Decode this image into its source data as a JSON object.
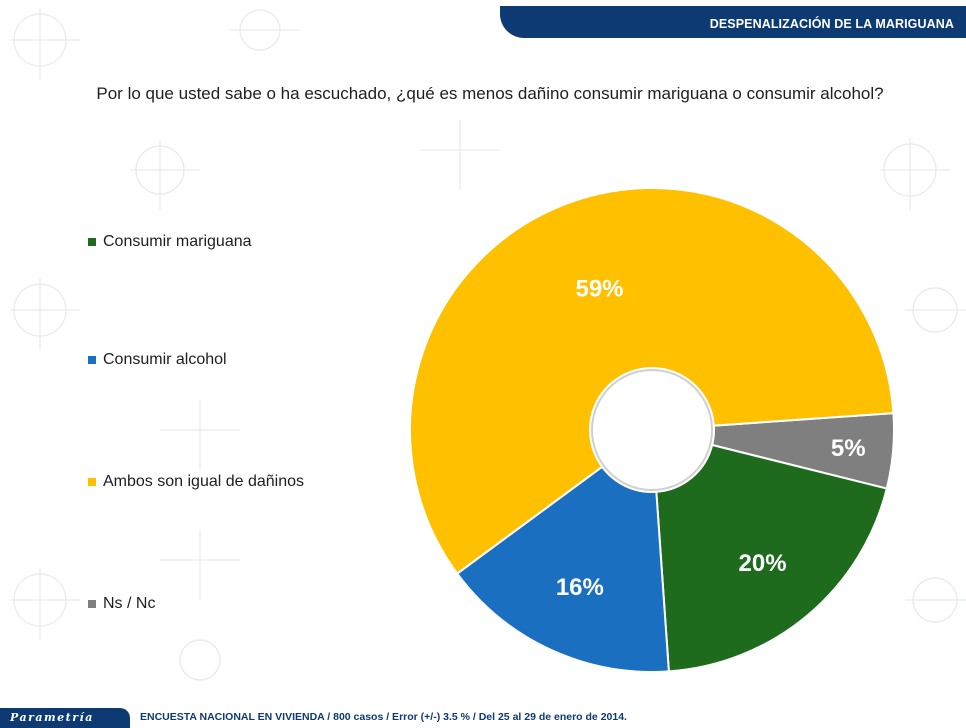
{
  "header": {
    "title": "DESPENALIZACIÓN   DE LA MARIGUANA"
  },
  "question": "Por lo que usted sabe o ha escuchado, ¿qué es menos dañino consumir mariguana o consumir alcohol?",
  "footer": {
    "logo": "Parametría",
    "note": "ENCUESTA NACIONAL EN VIVIENDA / 800 casos / Error (+/-) 3.5 % / Del 25 al 29 de enero de 2014."
  },
  "chart_data": {
    "type": "pie",
    "subtype": "doughnut",
    "title": "",
    "legend_position": "left",
    "slices": [
      {
        "label": "Consumir mariguana",
        "value": 20,
        "display": "20%",
        "color": "#1e6b1e"
      },
      {
        "label": "Consumir alcohol",
        "value": 16,
        "display": "16%",
        "color": "#1a6fc0"
      },
      {
        "label": "Ambos son igual de dañinos",
        "value": 59,
        "display": "59%",
        "color": "#ffc000"
      },
      {
        "label": "Ns / Nc",
        "value": 5,
        "display": "5%",
        "color": "#7f7f7f"
      }
    ],
    "legend_order": [
      "Consumir mariguana",
      "Consumir alcohol",
      "Ambos son igual de dañinos",
      "Ns / Nc"
    ],
    "slice_order": [
      "Ns / Nc",
      "Consumir mariguana",
      "Consumir alcohol",
      "Ambos son igual de dañinos"
    ]
  }
}
